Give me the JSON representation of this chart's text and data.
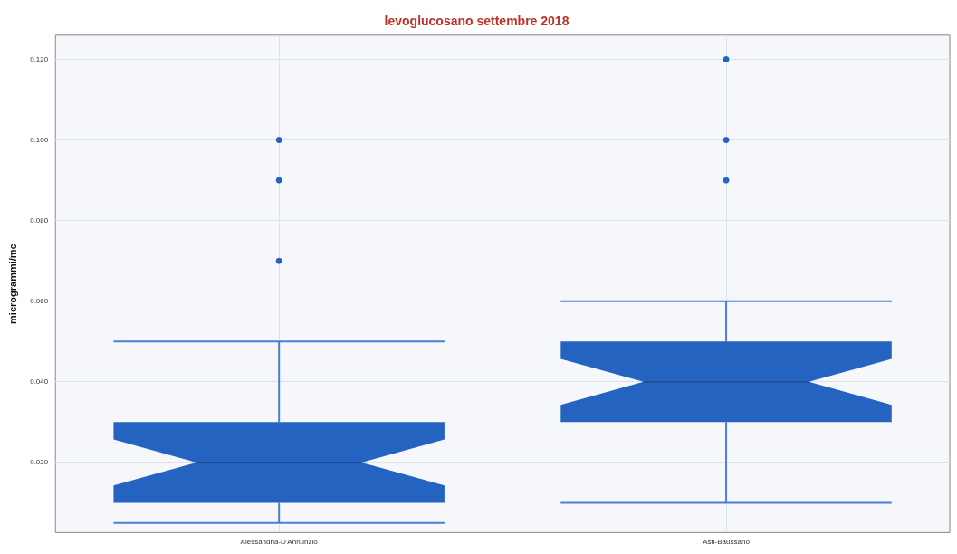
{
  "chart_data": {
    "type": "box",
    "title": "levoglucosano settembre 2018",
    "ylabel": "microgrammi/mc",
    "categories": [
      "Alessandria-D'Annunzio",
      "Asti-Baussano"
    ],
    "boxes": [
      {
        "low": 0.005,
        "q1": 0.01,
        "median": 0.02,
        "q3": 0.03,
        "high": 0.05,
        "outliers": [
          0.07,
          0.09,
          0.1
        ]
      },
      {
        "low": 0.01,
        "q1": 0.03,
        "median": 0.04,
        "q3": 0.05,
        "high": 0.06,
        "outliers": [
          0.09,
          0.1,
          0.12
        ]
      }
    ],
    "color": "#2563c0",
    "ylim": [
      0.0026,
      0.126
    ],
    "yticks": [
      {
        "value": 0.02,
        "label": "0.020"
      },
      {
        "value": 0.04,
        "label": "0.040"
      },
      {
        "value": 0.06,
        "label": "0.060"
      },
      {
        "value": 0.08,
        "label": "0.080"
      },
      {
        "value": 0.1,
        "label": "0.100"
      },
      {
        "value": 0.12,
        "label": "0.120"
      }
    ],
    "grid": true,
    "legend": false,
    "marker": "circle"
  }
}
